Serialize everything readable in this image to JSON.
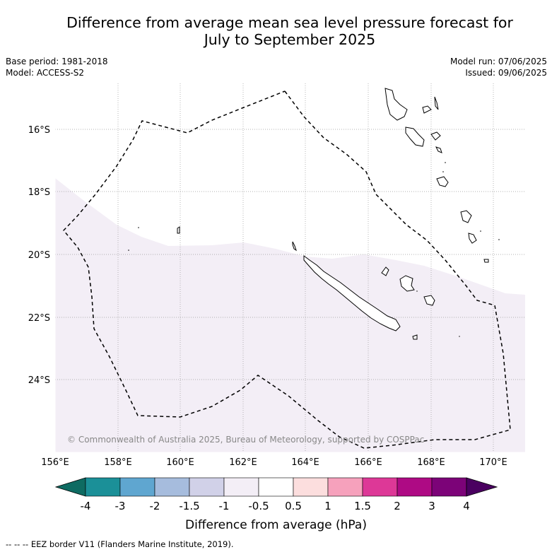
{
  "title_line1": "Difference from average mean sea level pressure forecast for",
  "title_line2": "July to September 2025",
  "base_period": "Base period: 1981-2018",
  "model": "Model: ACCESS-S2",
  "model_run": "Model run: 07/06/2025",
  "issued": "Issued: 09/06/2025",
  "copyright": "© Commonwealth of Australia 2025, Bureau of Meteorology, supported by COSPPac",
  "lat_labels": [
    "16°S",
    "18°S",
    "20°S",
    "22°S",
    "24°S"
  ],
  "lon_labels": [
    "156°E",
    "158°E",
    "160°E",
    "162°E",
    "164°E",
    "166°E",
    "168°E",
    "170°E"
  ],
  "colorbar": {
    "label": "Difference from average (hPa)",
    "ticks": [
      "-4",
      "-3",
      "-2",
      "-1.5",
      "-1",
      "-0.5",
      "0.5",
      "1",
      "1.5",
      "2",
      "3",
      "4"
    ],
    "colors": [
      "#0e6b62",
      "#1b9098",
      "#5fa6d0",
      "#a6bcdd",
      "#d1d1e8",
      "#f3eef6",
      "#ffffff",
      "#fcdede",
      "#f6a1bc",
      "#dd3897",
      "#ae0a84",
      "#7c0378",
      "#4a0060"
    ]
  },
  "footer": "--  --  -- EEZ border V11 (Flanders Marine Institute, 2019)."
}
